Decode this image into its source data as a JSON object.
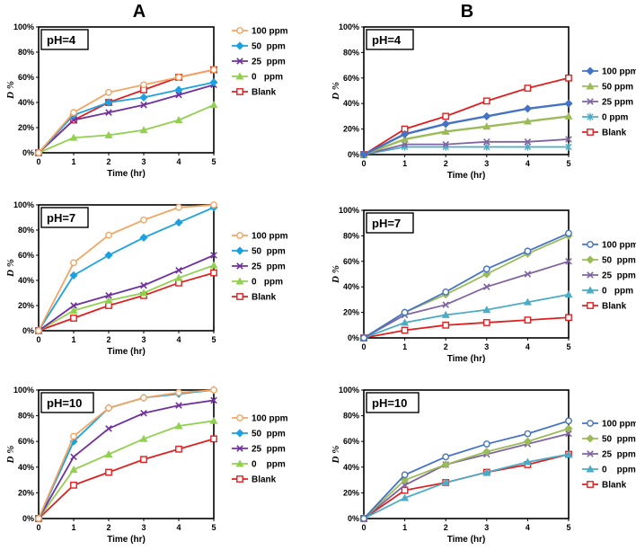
{
  "panel_labels": [
    "A",
    "B"
  ],
  "colors": {
    "A": {
      "100 ppm": "#F4A460",
      "50 ppm": "#1BA1E2",
      "25 ppm": "#7030A0",
      "0 ppm": "#92D050",
      "Blank": "#E02020"
    },
    "B": {
      "100 ppm": "#4472C4",
      "50 ppm": "#9BBB59",
      "25 ppm": "#8064A2",
      "0 ppm": "#4BACC6",
      "Blank": "#E02020"
    }
  },
  "chart_data": [
    {
      "type": "line",
      "panel": "A",
      "title": "pH=4",
      "xlabel": "Time (hr)",
      "ylabel": "D %",
      "x": [
        0,
        1,
        2,
        3,
        4,
        5
      ],
      "xlim": [
        0,
        5
      ],
      "ylim": [
        0,
        100
      ],
      "yticks": [
        "0%",
        "20%",
        "40%",
        "60%",
        "80%",
        "100%"
      ],
      "series": [
        {
          "name": "100 ppm",
          "marker": "circle-open",
          "values": [
            0,
            32,
            48,
            54,
            60,
            66
          ]
        },
        {
          "name": "50 ppm",
          "marker": "diamond",
          "values": [
            0,
            30,
            40,
            44,
            50,
            56
          ]
        },
        {
          "name": "25 ppm",
          "marker": "x",
          "values": [
            0,
            26,
            32,
            38,
            46,
            54
          ]
        },
        {
          "name": "0 ppm",
          "marker": "triangle",
          "values": [
            0,
            12,
            14,
            18,
            26,
            38
          ]
        },
        {
          "name": "Blank",
          "marker": "square-open",
          "values": [
            0,
            26,
            40,
            50,
            60,
            66
          ]
        }
      ],
      "legend_labels": [
        "100 ppm",
        "50  ppm",
        "25  ppm",
        "0   ppm",
        "Blank"
      ]
    },
    {
      "type": "line",
      "panel": "B",
      "title": "pH=4",
      "xlabel": "Time (hr)",
      "ylabel": "D %",
      "x": [
        0,
        1,
        2,
        3,
        4,
        5
      ],
      "xlim": [
        0,
        5
      ],
      "ylim": [
        0,
        100
      ],
      "yticks": [
        "0%",
        "20%",
        "40%",
        "60%",
        "80%",
        "100%"
      ],
      "series": [
        {
          "name": "100 ppm",
          "marker": "diamond",
          "values": [
            0,
            16,
            24,
            30,
            36,
            40
          ]
        },
        {
          "name": "50 ppm",
          "marker": "triangle",
          "values": [
            0,
            12,
            18,
            22,
            26,
            30
          ]
        },
        {
          "name": "25 ppm",
          "marker": "x",
          "values": [
            0,
            8,
            8,
            10,
            10,
            12
          ]
        },
        {
          "name": "0 ppm",
          "marker": "star",
          "values": [
            0,
            6,
            6,
            6,
            6,
            6
          ]
        },
        {
          "name": "Blank",
          "marker": "square-open",
          "values": [
            0,
            20,
            30,
            42,
            52,
            60
          ]
        }
      ],
      "legend_labels": [
        "100 ppm",
        "50 ppm",
        "25 ppm",
        "0 ppm",
        "Blank"
      ]
    },
    {
      "type": "line",
      "panel": "A",
      "title": "pH=7",
      "xlabel": "Time (hr)",
      "ylabel": "D %",
      "x": [
        0,
        1,
        2,
        3,
        4,
        5
      ],
      "xlim": [
        0,
        5
      ],
      "ylim": [
        0,
        100
      ],
      "yticks": [
        "0%",
        "20%",
        "40%",
        "60%",
        "80%",
        "100%"
      ],
      "series": [
        {
          "name": "100 ppm",
          "marker": "circle-open",
          "values": [
            0,
            54,
            76,
            88,
            98,
            100
          ]
        },
        {
          "name": "50 ppm",
          "marker": "diamond",
          "values": [
            0,
            44,
            60,
            74,
            86,
            98
          ]
        },
        {
          "name": "25 ppm",
          "marker": "x",
          "values": [
            0,
            20,
            28,
            36,
            48,
            60
          ]
        },
        {
          "name": "0 ppm",
          "marker": "triangle",
          "values": [
            0,
            16,
            24,
            30,
            42,
            52
          ]
        },
        {
          "name": "Blank",
          "marker": "square-open",
          "values": [
            0,
            10,
            20,
            28,
            38,
            46
          ]
        }
      ],
      "legend_labels": [
        "100 ppm",
        "50  ppm",
        "25  ppm",
        "0   ppm",
        "Blank"
      ]
    },
    {
      "type": "line",
      "panel": "B",
      "title": "pH=7",
      "xlabel": "Time (hr)",
      "ylabel": "D %",
      "x": [
        0,
        1,
        2,
        3,
        4,
        5
      ],
      "xlim": [
        0,
        5
      ],
      "ylim": [
        0,
        100
      ],
      "yticks": [
        "0%",
        "20%",
        "40%",
        "60%",
        "80%",
        "100%"
      ],
      "series": [
        {
          "name": "100 ppm",
          "marker": "circle-open",
          "values": [
            0,
            20,
            36,
            54,
            68,
            82
          ]
        },
        {
          "name": "50 ppm",
          "marker": "diamond",
          "values": [
            0,
            20,
            34,
            50,
            66,
            80
          ]
        },
        {
          "name": "25 ppm",
          "marker": "x",
          "values": [
            0,
            18,
            26,
            40,
            50,
            60
          ]
        },
        {
          "name": "0 ppm",
          "marker": "triangle",
          "values": [
            0,
            12,
            18,
            22,
            28,
            34
          ]
        },
        {
          "name": "Blank",
          "marker": "square-open",
          "values": [
            0,
            6,
            10,
            12,
            14,
            16
          ]
        }
      ],
      "legend_labels": [
        "100 ppm",
        "50  ppm",
        "25  ppm",
        "0   ppm",
        "Blank"
      ]
    },
    {
      "type": "line",
      "panel": "A",
      "title": "pH=10",
      "xlabel": "Time (hr)",
      "ylabel": "D %",
      "x": [
        0,
        1,
        2,
        3,
        4,
        5
      ],
      "xlim": [
        0,
        5
      ],
      "ylim": [
        0,
        100
      ],
      "yticks": [
        "0%",
        "20%",
        "40%",
        "60%",
        "80%",
        "100%"
      ],
      "series": [
        {
          "name": "100 ppm",
          "marker": "circle-open",
          "values": [
            0,
            64,
            86,
            94,
            98,
            100
          ]
        },
        {
          "name": "50 ppm",
          "marker": "diamond",
          "values": [
            0,
            60,
            86,
            94,
            97,
            100
          ]
        },
        {
          "name": "25 ppm",
          "marker": "x",
          "values": [
            0,
            48,
            70,
            82,
            88,
            92
          ]
        },
        {
          "name": "0 ppm",
          "marker": "triangle",
          "values": [
            0,
            38,
            50,
            62,
            72,
            76
          ]
        },
        {
          "name": "Blank",
          "marker": "square-open",
          "values": [
            0,
            26,
            36,
            46,
            54,
            62
          ]
        }
      ],
      "legend_labels": [
        "100 ppm",
        "50  ppm",
        "25  ppm",
        "0    ppm",
        "Blank"
      ]
    },
    {
      "type": "line",
      "panel": "B",
      "title": "pH=10",
      "xlabel": "Time (hr)",
      "ylabel": "D %",
      "x": [
        0,
        1,
        2,
        3,
        4,
        5
      ],
      "xlim": [
        0,
        5
      ],
      "ylim": [
        0,
        100
      ],
      "yticks": [
        "0%",
        "20%",
        "40%",
        "60%",
        "80%",
        "100%"
      ],
      "series": [
        {
          "name": "100 ppm",
          "marker": "circle-open",
          "values": [
            0,
            34,
            48,
            58,
            66,
            76
          ]
        },
        {
          "name": "50 ppm",
          "marker": "diamond",
          "values": [
            0,
            30,
            42,
            52,
            60,
            70
          ]
        },
        {
          "name": "25 ppm",
          "marker": "x",
          "values": [
            0,
            26,
            42,
            50,
            58,
            66
          ]
        },
        {
          "name": "0 ppm",
          "marker": "triangle",
          "values": [
            0,
            16,
            28,
            36,
            44,
            50
          ]
        },
        {
          "name": "Blank",
          "marker": "square-open",
          "values": [
            0,
            22,
            28,
            36,
            42,
            50
          ]
        }
      ],
      "legend_labels": [
        "100 ppm",
        "50  ppm",
        "25  ppm",
        "0    ppm",
        "Blank"
      ]
    }
  ]
}
